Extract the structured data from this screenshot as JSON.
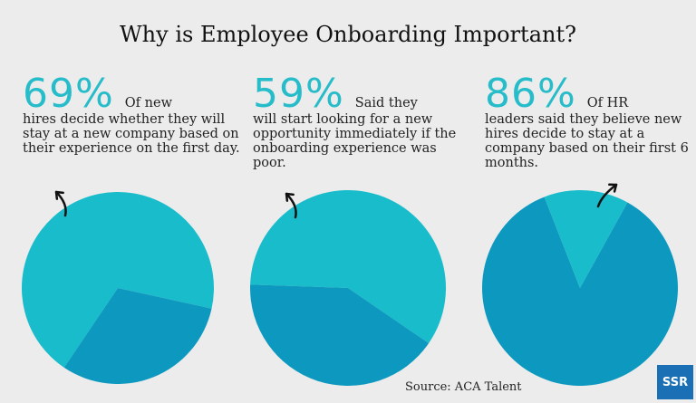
{
  "header": {
    "title": "Why is Employee Onboarding Important?"
  },
  "stats": [
    {
      "percent": "69%",
      "lead": "Of new",
      "text": "hires decide whether they will stay at a new company based on their experience on the first day."
    },
    {
      "percent": "59%",
      "lead": "Said they",
      "text": "will start looking for a new opportunity immediately if the onboarding experience was poor."
    },
    {
      "percent": "86%",
      "lead": "Of HR",
      "text": "leaders said they believe new hires decide to stay at a company based on their first 6 months."
    }
  ],
  "chart_data": {
    "type": "pie",
    "charts": [
      {
        "value": 69,
        "slices": [
          {
            "value": 69,
            "color": "#18bccb"
          },
          {
            "value": 31,
            "color": "#0d99bf"
          }
        ]
      },
      {
        "value": 59,
        "slices": [
          {
            "value": 59,
            "color": "#18bccb"
          },
          {
            "value": 41,
            "color": "#0d99bf"
          }
        ]
      },
      {
        "value": 86,
        "slices": [
          {
            "value": 86,
            "color": "#0d99bf"
          },
          {
            "value": 14,
            "color": "#18bccb"
          }
        ]
      }
    ]
  },
  "footer": {
    "source": "Source: ACA Talent",
    "logo": "SSR"
  },
  "colors": {
    "accent": "#27bcc9",
    "dark": "#0d99bf",
    "light": "#18bccb",
    "brand": "#1a6fb5"
  }
}
